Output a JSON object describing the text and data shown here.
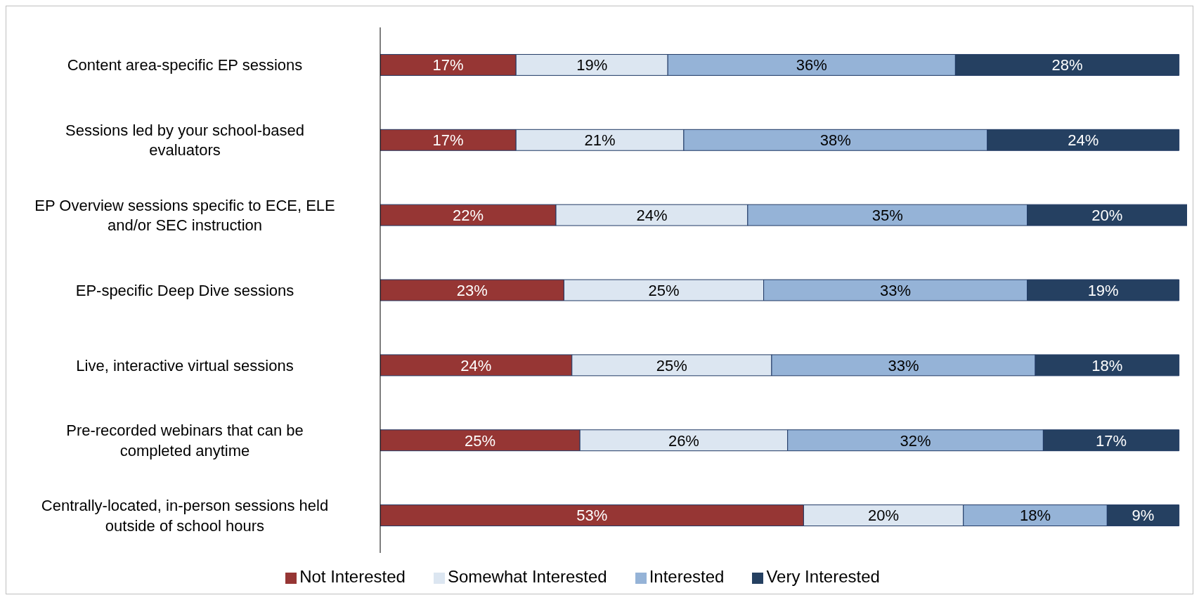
{
  "chart_data": {
    "type": "bar",
    "orientation": "horizontal",
    "stacked": true,
    "legend": "bottom",
    "categories": [
      "Content area-specific EP sessions",
      "Sessions led by your school-based evaluators",
      "EP Overview sessions specific to ECE, ELE and/or SEC instruction",
      "EP-specific Deep Dive sessions",
      "Live, interactive virtual sessions",
      "Pre-recorded webinars that can be completed anytime",
      "Centrally-located, in-person sessions held outside of school hours"
    ],
    "series": [
      {
        "name": "Not Interested",
        "color": "#963634",
        "values": [
          17,
          17,
          22,
          23,
          24,
          25,
          53
        ],
        "value_labels": [
          "17%",
          "17%",
          "22%",
          "23%",
          "24%",
          "25%",
          "53%"
        ]
      },
      {
        "name": "Somewhat Interested",
        "color": "#dce6f1",
        "values": [
          19,
          21,
          24,
          25,
          25,
          26,
          20
        ],
        "value_labels": [
          "19%",
          "21%",
          "24%",
          "25%",
          "25%",
          "26%",
          "20%"
        ]
      },
      {
        "name": "Interested",
        "color": "#95b3d7",
        "values": [
          36,
          38,
          35,
          33,
          33,
          32,
          18
        ],
        "value_labels": [
          "36%",
          "38%",
          "35%",
          "33%",
          "33%",
          "32%",
          "18%"
        ]
      },
      {
        "name": "Very Interested",
        "color": "#254061",
        "values": [
          28,
          24,
          20,
          19,
          18,
          17,
          9
        ],
        "value_labels": [
          "28%",
          "24%",
          "20%",
          "19%",
          "18%",
          "17%",
          "9%"
        ]
      }
    ]
  }
}
